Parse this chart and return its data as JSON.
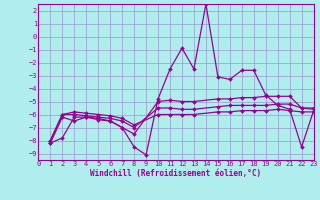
{
  "xlabel": "Windchill (Refroidissement éolien,°C)",
  "bg_color": "#b0eeee",
  "grid_color": "#9999cc",
  "line_color": "#990099",
  "xlim": [
    0,
    23
  ],
  "ylim": [
    -9.5,
    2.5
  ],
  "yticks": [
    2,
    1,
    0,
    -1,
    -2,
    -3,
    -4,
    -5,
    -6,
    -7,
    -8,
    -9
  ],
  "xticks": [
    0,
    1,
    2,
    3,
    4,
    5,
    6,
    7,
    8,
    9,
    10,
    11,
    12,
    13,
    14,
    15,
    16,
    17,
    18,
    19,
    20,
    21,
    22,
    23
  ],
  "series": [
    {
      "x": [
        1,
        2,
        3,
        4,
        5,
        6,
        7,
        8,
        9,
        10,
        11,
        12,
        13,
        14,
        15,
        16,
        17,
        18,
        19,
        20,
        21,
        22,
        23
      ],
      "y": [
        -8.2,
        -7.8,
        -6.2,
        -6.2,
        -6.4,
        -6.5,
        -7.0,
        -8.5,
        -9.1,
        -4.8,
        -2.5,
        -0.9,
        -2.5,
        2.5,
        -3.1,
        -3.3,
        -2.6,
        -2.6,
        -4.5,
        -5.3,
        -5.6,
        -8.5,
        -5.7
      ]
    },
    {
      "x": [
        1,
        2,
        3,
        4,
        5,
        6,
        7,
        8,
        10,
        11,
        12,
        13,
        15,
        16,
        17,
        18,
        19,
        20,
        21,
        22,
        23
      ],
      "y": [
        -8.2,
        -6.2,
        -6.5,
        -6.2,
        -6.3,
        -6.5,
        -7.0,
        -7.5,
        -5.0,
        -4.9,
        -5.0,
        -5.0,
        -4.8,
        -4.8,
        -4.7,
        -4.7,
        -4.6,
        -4.6,
        -4.6,
        -5.5,
        -5.5
      ]
    },
    {
      "x": [
        1,
        2,
        3,
        4,
        5,
        6,
        7,
        8,
        10,
        11,
        12,
        13,
        15,
        16,
        17,
        18,
        19,
        20,
        21,
        22,
        23
      ],
      "y": [
        -8.0,
        -6.0,
        -6.0,
        -6.1,
        -6.2,
        -6.3,
        -6.5,
        -7.0,
        -5.5,
        -5.5,
        -5.6,
        -5.6,
        -5.4,
        -5.3,
        -5.3,
        -5.3,
        -5.3,
        -5.2,
        -5.2,
        -5.5,
        -5.6
      ]
    },
    {
      "x": [
        1,
        2,
        3,
        4,
        5,
        6,
        7,
        8,
        10,
        11,
        12,
        13,
        15,
        16,
        17,
        18,
        19,
        20,
        21,
        22,
        23
      ],
      "y": [
        -8.0,
        -6.0,
        -5.8,
        -5.9,
        -6.0,
        -6.1,
        -6.3,
        -6.8,
        -6.0,
        -6.0,
        -6.0,
        -6.0,
        -5.8,
        -5.8,
        -5.7,
        -5.7,
        -5.7,
        -5.6,
        -5.7,
        -5.8,
        -5.8
      ]
    }
  ]
}
